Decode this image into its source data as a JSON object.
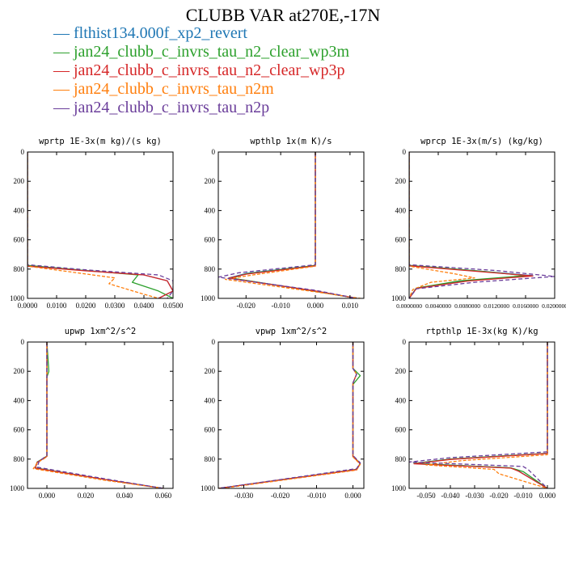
{
  "page": {
    "title": "CLUBB VAR at270E,-17N"
  },
  "legend": [
    {
      "marker": "—",
      "label": "flthist134.000f_xp2_revert",
      "color": "#1f77b4"
    },
    {
      "marker": "—",
      "label": "jan24_clubb_c_invrs_tau_n2_clear_wp3m",
      "color": "#2ca02c"
    },
    {
      "marker": "—",
      "label": "jan24_clubb_c_invrs_tau_n2_clear_wp3p",
      "color": "#d62728"
    },
    {
      "marker": "—",
      "label": "jan24_clubb_c_invrs_tau_n2m",
      "color": "#ff7f0e"
    },
    {
      "marker": "—",
      "label": "jan24_clubb_c_invrs_tau_n2p",
      "color": "#6a3d9a"
    }
  ],
  "chart_data": [
    {
      "type": "line",
      "title": "wprtp  1E-3x(m kg)/(s kg)",
      "xlim": [
        0,
        0.05
      ],
      "ylim": [
        1000,
        0
      ],
      "xticks": [
        "0.0000",
        "0.0100",
        "0.0200",
        "0.0300",
        "0.0400",
        "0.0500"
      ],
      "xtick_values": [
        0,
        0.01,
        0.02,
        0.03,
        0.04,
        0.05
      ],
      "yticks": [
        "0",
        "200",
        "400",
        "600",
        "800",
        "1000"
      ],
      "series": [
        {
          "color": "#1f77b4",
          "dash": "",
          "x": [
            0,
            0,
            0,
            0.02,
            0.04,
            0.048,
            0.05,
            0.045
          ],
          "y": [
            0,
            600,
            775,
            810,
            840,
            880,
            950,
            1000
          ]
        },
        {
          "color": "#2ca02c",
          "dash": "",
          "x": [
            0,
            0,
            0,
            0.02,
            0.038,
            0.036,
            0.045,
            0.05
          ],
          "y": [
            0,
            600,
            775,
            810,
            840,
            890,
            950,
            1000
          ]
        },
        {
          "color": "#d62728",
          "dash": "",
          "x": [
            0,
            0,
            0,
            0.02,
            0.04,
            0.048,
            0.05,
            0.045
          ],
          "y": [
            0,
            600,
            780,
            812,
            840,
            880,
            950,
            1000
          ]
        },
        {
          "color": "#ff7f0e",
          "dash": "4,2",
          "x": [
            0,
            0,
            0,
            0.015,
            0.03,
            0.028,
            0.038,
            0.045
          ],
          "y": [
            0,
            600,
            780,
            820,
            860,
            900,
            960,
            1000
          ]
        },
        {
          "color": "#6a3d9a",
          "dash": "5,3",
          "x": [
            0,
            0,
            0,
            0.02,
            0.045,
            0.05,
            0.05,
            0.048
          ],
          "y": [
            0,
            600,
            770,
            805,
            840,
            880,
            950,
            1000
          ]
        }
      ]
    },
    {
      "type": "line",
      "title": "wpthlp  1x(m K)/s",
      "xlim": [
        -0.028,
        0.014
      ],
      "ylim": [
        1000,
        0
      ],
      "xticks": [
        "-0.020",
        "-0.010",
        "0.000",
        "0.010"
      ],
      "xtick_values": [
        -0.02,
        -0.01,
        0,
        0.01
      ],
      "yticks": [
        "0",
        "200",
        "400",
        "600",
        "800",
        "1000"
      ],
      "series": [
        {
          "color": "#1f77b4",
          "dash": "",
          "x": [
            0,
            0,
            0,
            -0.02,
            -0.025,
            0,
            0.012
          ],
          "y": [
            0,
            600,
            775,
            830,
            860,
            950,
            1000
          ]
        },
        {
          "color": "#2ca02c",
          "dash": "",
          "x": [
            0,
            0,
            0,
            -0.02,
            -0.024,
            0,
            0.012
          ],
          "y": [
            0,
            600,
            775,
            832,
            862,
            952,
            1000
          ]
        },
        {
          "color": "#d62728",
          "dash": "",
          "x": [
            0,
            0,
            0,
            -0.02,
            -0.025,
            0,
            0.012
          ],
          "y": [
            0,
            600,
            778,
            835,
            862,
            950,
            1000
          ]
        },
        {
          "color": "#ff7f0e",
          "dash": "4,2",
          "x": [
            0,
            0,
            0,
            -0.018,
            -0.026,
            0,
            0.013
          ],
          "y": [
            0,
            600,
            780,
            840,
            870,
            955,
            1000
          ]
        },
        {
          "color": "#6a3d9a",
          "dash": "5,3",
          "x": [
            0,
            0,
            0,
            -0.022,
            -0.028,
            0,
            0.012
          ],
          "y": [
            0,
            600,
            770,
            825,
            855,
            945,
            1000
          ]
        }
      ]
    },
    {
      "type": "line",
      "title": "wprcp  1E-3x(m/s) (kg/kg)",
      "xlim": [
        0,
        0.02
      ],
      "ylim": [
        1000,
        0
      ],
      "xticks": [
        "0.0000000",
        "0.0040000",
        "0.0080000",
        "0.0120000",
        "0.0160000",
        "0.0200000"
      ],
      "xtick_values": [
        0,
        0.004,
        0.008,
        0.012,
        0.016,
        0.02
      ],
      "yticks": [
        "0",
        "200",
        "400",
        "600",
        "800",
        "1000"
      ],
      "series": [
        {
          "color": "#1f77b4",
          "dash": "",
          "x": [
            0,
            0,
            0,
            0.01,
            0.017,
            0.008,
            0.001,
            0
          ],
          "y": [
            0,
            600,
            775,
            815,
            845,
            880,
            930,
            1000
          ]
        },
        {
          "color": "#2ca02c",
          "dash": "",
          "x": [
            0,
            0,
            0,
            0.01,
            0.016,
            0.007,
            0.001,
            0
          ],
          "y": [
            0,
            600,
            775,
            815,
            845,
            880,
            930,
            1000
          ]
        },
        {
          "color": "#d62728",
          "dash": "",
          "x": [
            0,
            0,
            0,
            0.01,
            0.017,
            0.008,
            0.001,
            0
          ],
          "y": [
            0,
            600,
            778,
            818,
            847,
            882,
            932,
            1000
          ]
        },
        {
          "color": "#ff7f0e",
          "dash": "4,2",
          "x": [
            0,
            0,
            0,
            0.006,
            0.009,
            0.003,
            0.0005,
            0
          ],
          "y": [
            0,
            600,
            780,
            830,
            860,
            890,
            940,
            1000
          ]
        },
        {
          "color": "#6a3d9a",
          "dash": "5,3",
          "x": [
            0,
            0,
            0,
            0.012,
            0.02,
            0.009,
            0.001,
            0
          ],
          "y": [
            0,
            600,
            770,
            810,
            850,
            890,
            935,
            1000
          ]
        }
      ]
    },
    {
      "type": "line",
      "title": "upwp  1xm^2/s^2",
      "xlim": [
        -0.01,
        0.065
      ],
      "ylim": [
        1000,
        0
      ],
      "xticks": [
        "0.000",
        "0.020",
        "0.040",
        "0.060"
      ],
      "xtick_values": [
        0,
        0.02,
        0.04,
        0.06
      ],
      "yticks": [
        "0",
        "200",
        "400",
        "600",
        "800",
        "1000"
      ],
      "series": [
        {
          "color": "#1f77b4",
          "dash": "",
          "x": [
            0,
            0,
            0,
            0,
            -0.005,
            -0.006,
            0.03,
            0.06
          ],
          "y": [
            0,
            200,
            240,
            780,
            820,
            860,
            940,
            1000
          ]
        },
        {
          "color": "#2ca02c",
          "dash": "",
          "x": [
            0,
            0.001,
            0,
            0,
            -0.005,
            -0.006,
            0.03,
            0.06
          ],
          "y": [
            0,
            200,
            240,
            780,
            820,
            860,
            940,
            1000
          ]
        },
        {
          "color": "#d62728",
          "dash": "",
          "x": [
            0,
            0,
            0,
            0,
            -0.005,
            -0.006,
            0.03,
            0.06
          ],
          "y": [
            0,
            200,
            240,
            782,
            822,
            862,
            940,
            1000
          ]
        },
        {
          "color": "#ff7f0e",
          "dash": "4,2",
          "x": [
            0,
            0,
            0,
            0,
            -0.005,
            -0.007,
            0.03,
            0.06
          ],
          "y": [
            0,
            200,
            240,
            785,
            825,
            865,
            945,
            1000
          ]
        },
        {
          "color": "#6a3d9a",
          "dash": "5,3",
          "x": [
            0,
            0,
            0,
            0,
            -0.004,
            -0.005,
            0.03,
            0.06
          ],
          "y": [
            0,
            200,
            240,
            775,
            815,
            855,
            935,
            1000
          ]
        }
      ]
    },
    {
      "type": "line",
      "title": "vpwp  1xm^2/s^2",
      "xlim": [
        -0.037,
        0.003
      ],
      "ylim": [
        1000,
        0
      ],
      "xticks": [
        "-0.030",
        "-0.020",
        "-0.010",
        "0.000"
      ],
      "xtick_values": [
        -0.03,
        -0.02,
        -0.01,
        0
      ],
      "yticks": [
        "0",
        "200",
        "400",
        "600",
        "800",
        "1000"
      ],
      "series": [
        {
          "color": "#1f77b4",
          "dash": "",
          "x": [
            0,
            0,
            0.001,
            0,
            0,
            0.002,
            0.001,
            -0.037
          ],
          "y": [
            0,
            180,
            220,
            280,
            780,
            830,
            870,
            1000
          ]
        },
        {
          "color": "#2ca02c",
          "dash": "",
          "x": [
            0,
            0,
            0.002,
            0,
            0,
            0.002,
            0.001,
            -0.037
          ],
          "y": [
            0,
            180,
            230,
            290,
            780,
            830,
            870,
            1000
          ]
        },
        {
          "color": "#d62728",
          "dash": "",
          "x": [
            0,
            0,
            0.001,
            0,
            0,
            0.002,
            0.001,
            -0.037
          ],
          "y": [
            0,
            180,
            220,
            280,
            782,
            832,
            872,
            1000
          ]
        },
        {
          "color": "#ff7f0e",
          "dash": "4,2",
          "x": [
            0,
            0,
            0.001,
            0,
            0,
            0.002,
            0.001,
            -0.036
          ],
          "y": [
            0,
            180,
            220,
            280,
            785,
            835,
            875,
            1000
          ]
        },
        {
          "color": "#6a3d9a",
          "dash": "5,3",
          "x": [
            0,
            0,
            0.001,
            0,
            0,
            0.002,
            0.001,
            -0.037
          ],
          "y": [
            0,
            180,
            220,
            280,
            775,
            825,
            865,
            1000
          ]
        }
      ]
    },
    {
      "type": "line",
      "title": "rtpthlp  1E-3x(kg K)/kg",
      "xlim": [
        -0.057,
        0.003
      ],
      "ylim": [
        1000,
        0
      ],
      "xticks": [
        "-0.050",
        "-0.040",
        "-0.030",
        "-0.020",
        "-0.010",
        "0.000"
      ],
      "xtick_values": [
        -0.05,
        -0.04,
        -0.03,
        -0.02,
        -0.01,
        0
      ],
      "yticks": [
        "0",
        "200",
        "400",
        "600",
        "800",
        "1000"
      ],
      "series": [
        {
          "color": "#1f77b4",
          "dash": "",
          "x": [
            0,
            0,
            0,
            -0.04,
            -0.055,
            -0.015,
            -0.012,
            0
          ],
          "y": [
            0,
            600,
            760,
            800,
            830,
            860,
            880,
            1000
          ]
        },
        {
          "color": "#2ca02c",
          "dash": "",
          "x": [
            0,
            0,
            0,
            -0.04,
            -0.055,
            -0.015,
            -0.01,
            0
          ],
          "y": [
            0,
            600,
            760,
            800,
            830,
            860,
            885,
            1000
          ]
        },
        {
          "color": "#d62728",
          "dash": "",
          "x": [
            0,
            0,
            0,
            -0.04,
            -0.055,
            -0.015,
            -0.012,
            0
          ],
          "y": [
            0,
            600,
            762,
            802,
            832,
            862,
            882,
            1000
          ]
        },
        {
          "color": "#ff7f0e",
          "dash": "4,2",
          "x": [
            0,
            0,
            0,
            -0.035,
            -0.05,
            -0.022,
            -0.02,
            0
          ],
          "y": [
            0,
            600,
            770,
            810,
            840,
            870,
            900,
            1000
          ]
        },
        {
          "color": "#6a3d9a",
          "dash": "5,3",
          "x": [
            0,
            0,
            0,
            -0.04,
            -0.057,
            -0.01,
            -0.008,
            0
          ],
          "y": [
            0,
            600,
            750,
            790,
            820,
            850,
            870,
            1000
          ]
        }
      ]
    }
  ]
}
